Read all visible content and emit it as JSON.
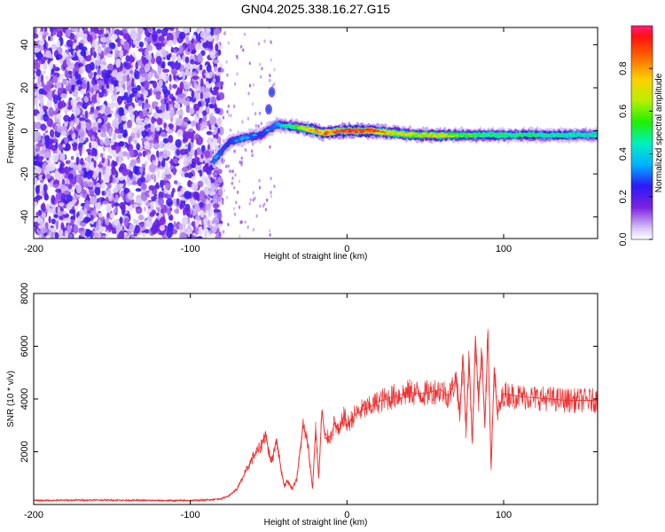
{
  "title": "GN04.2025.338.16.27.G15",
  "chart_data": [
    {
      "type": "heatmap",
      "xlabel": "Height of straight line (km)",
      "ylabel": "Frequency (Hz)",
      "xlim": [
        -200,
        160
      ],
      "ylim": [
        -50,
        48
      ],
      "xticks": [
        -200,
        -100,
        0,
        100
      ],
      "xtick_labels": [
        "-200",
        "-100",
        "0",
        "100"
      ],
      "yticks": [
        -40,
        -20,
        0,
        20,
        40
      ],
      "ytick_labels": [
        "-40",
        "-20",
        "0",
        "20",
        "40"
      ],
      "colorbar": {
        "label": "Normalized spectral amplitude",
        "range": [
          0.0,
          1.0
        ],
        "ticks": [
          0.0,
          0.2,
          0.4,
          0.6,
          0.8
        ],
        "tick_labels": [
          "0.0",
          "0.2",
          "0.4",
          "0.6",
          "0.8"
        ]
      },
      "noise_region_x": [
        -200,
        -80
      ],
      "ridge": [
        {
          "x": -85,
          "f": -14,
          "amp": 0.35
        },
        {
          "x": -75,
          "f": -5,
          "amp": 0.3
        },
        {
          "x": -65,
          "f": -3,
          "amp": 0.35
        },
        {
          "x": -55,
          "f": -2,
          "amp": 0.3
        },
        {
          "x": -45,
          "f": 3,
          "amp": 0.35
        },
        {
          "x": -35,
          "f": 2,
          "amp": 0.5
        },
        {
          "x": -25,
          "f": 1,
          "amp": 0.75
        },
        {
          "x": -15,
          "f": -1,
          "amp": 0.8
        },
        {
          "x": -5,
          "f": 0,
          "amp": 0.9
        },
        {
          "x": 5,
          "f": 0,
          "amp": 0.95
        },
        {
          "x": 15,
          "f": 0,
          "amp": 0.9
        },
        {
          "x": 30,
          "f": -1,
          "amp": 0.7
        },
        {
          "x": 45,
          "f": -2,
          "amp": 0.65
        },
        {
          "x": 60,
          "f": -2,
          "amp": 0.7
        },
        {
          "x": 75,
          "f": -2,
          "amp": 0.55
        },
        {
          "x": 90,
          "f": -2,
          "amp": 0.5
        },
        {
          "x": 110,
          "f": -2,
          "amp": 0.5
        },
        {
          "x": 130,
          "f": -2,
          "amp": 0.45
        },
        {
          "x": 160,
          "f": -2,
          "amp": 0.45
        }
      ],
      "secondary_features": [
        {
          "x": -50,
          "f": 10,
          "amp": 0.3
        },
        {
          "x": -48,
          "f": 18,
          "amp": 0.3
        }
      ]
    },
    {
      "type": "line",
      "xlabel": "Height of straight line (km)",
      "ylabel": "SNR (10 * v/v)",
      "xlim": [
        -200,
        160
      ],
      "ylim": [
        0,
        8000
      ],
      "xticks": [
        -200,
        -100,
        0,
        100
      ],
      "xtick_labels": [
        "-200",
        "-100",
        "0",
        "100"
      ],
      "yticks": [
        2000,
        4000,
        6000,
        8000
      ],
      "ytick_labels": [
        "2000",
        "4000",
        "6000",
        "8000"
      ],
      "color": "#ee3333",
      "series": [
        {
          "name": "SNR",
          "x": [
            -200,
            -180,
            -160,
            -140,
            -120,
            -100,
            -90,
            -80,
            -75,
            -70,
            -65,
            -60,
            -55,
            -52,
            -50,
            -48,
            -45,
            -42,
            -40,
            -38,
            -35,
            -32,
            -30,
            -28,
            -25,
            -22,
            -20,
            -18,
            -16,
            -14,
            -10,
            -8,
            -5,
            -2,
            0,
            5,
            10,
            15,
            20,
            25,
            30,
            40,
            50,
            55,
            60,
            65,
            70,
            72,
            74,
            76,
            78,
            80,
            82,
            84,
            86,
            88,
            90,
            92,
            94,
            96,
            100,
            110,
            120,
            130,
            140,
            150,
            160
          ],
          "y": [
            150,
            160,
            170,
            160,
            150,
            150,
            170,
            220,
            350,
            600,
            1200,
            1800,
            2200,
            2700,
            2000,
            1600,
            2500,
            1300,
            700,
            900,
            600,
            1000,
            2000,
            3000,
            2300,
            600,
            2900,
            1000,
            3600,
            2500,
            2600,
            3100,
            2700,
            3400,
            3000,
            3400,
            3600,
            3700,
            3900,
            4000,
            4100,
            4250,
            4200,
            4300,
            4350,
            4100,
            4800,
            3300,
            5700,
            2800,
            5600,
            2300,
            6400,
            3900,
            5800,
            2900,
            6500,
            1400,
            5200,
            3400,
            4200,
            4100,
            4050,
            4000,
            3950,
            3950,
            3950
          ]
        }
      ]
    }
  ]
}
